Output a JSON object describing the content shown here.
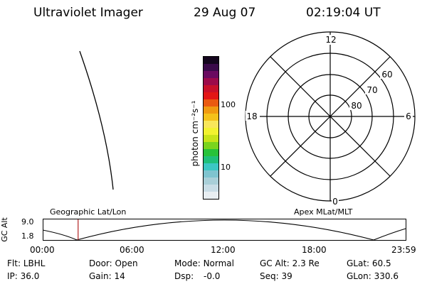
{
  "header": {
    "title": "Ultraviolet Imager",
    "date": "29 Aug 07",
    "time": "02:19:04 UT"
  },
  "colorbar": {
    "unit_label": "photon cm⁻²s⁻¹",
    "ticks": [
      "100",
      "10"
    ],
    "colors": [
      "#e8eef2",
      "#c9dde6",
      "#a9cfd8",
      "#7fc4cf",
      "#3cc7c3",
      "#1fbf7a",
      "#27c23a",
      "#7ad41e",
      "#c8e41a",
      "#f2f230",
      "#f8e65a",
      "#f4c21a",
      "#f09a10",
      "#ea5a10",
      "#e21616",
      "#c8102a",
      "#9c0a4a",
      "#6a0a60",
      "#3a0a4a",
      "#14061e"
    ]
  },
  "polar": {
    "mlt_labels": {
      "top": "12",
      "left": "18",
      "right": "6",
      "bottom": "0"
    },
    "lat_labels": [
      "60",
      "70",
      "80"
    ]
  },
  "timeline": {
    "ylabel": "GC Alt",
    "yticks": [
      "9.0",
      "1.8"
    ],
    "left_label": "Geographic Lat/Lon",
    "right_label": "Apex MLat/MLT",
    "xticks": [
      "00:00",
      "06:00",
      "12:00",
      "18:00",
      "23:59"
    ],
    "marker_time": "02:19",
    "marker_color": "#b22222"
  },
  "status": {
    "row1": [
      {
        "key": "Flt:",
        "val": "LBHL"
      },
      {
        "key": "Door:",
        "val": "Open"
      },
      {
        "key": "Mode:",
        "val": "Normal"
      },
      {
        "key": "GC Alt:",
        "val": "2.3 Re"
      },
      {
        "key": "GLat:",
        "val": "60.5"
      }
    ],
    "row2": [
      {
        "key": "IP:",
        "val": "36.0"
      },
      {
        "key": "Gain:",
        "val": "14"
      },
      {
        "key": "Dsp:",
        "val": "-0.0"
      },
      {
        "key": "Seq:",
        "val": "39"
      },
      {
        "key": "GLon:",
        "val": "330.6"
      }
    ]
  }
}
